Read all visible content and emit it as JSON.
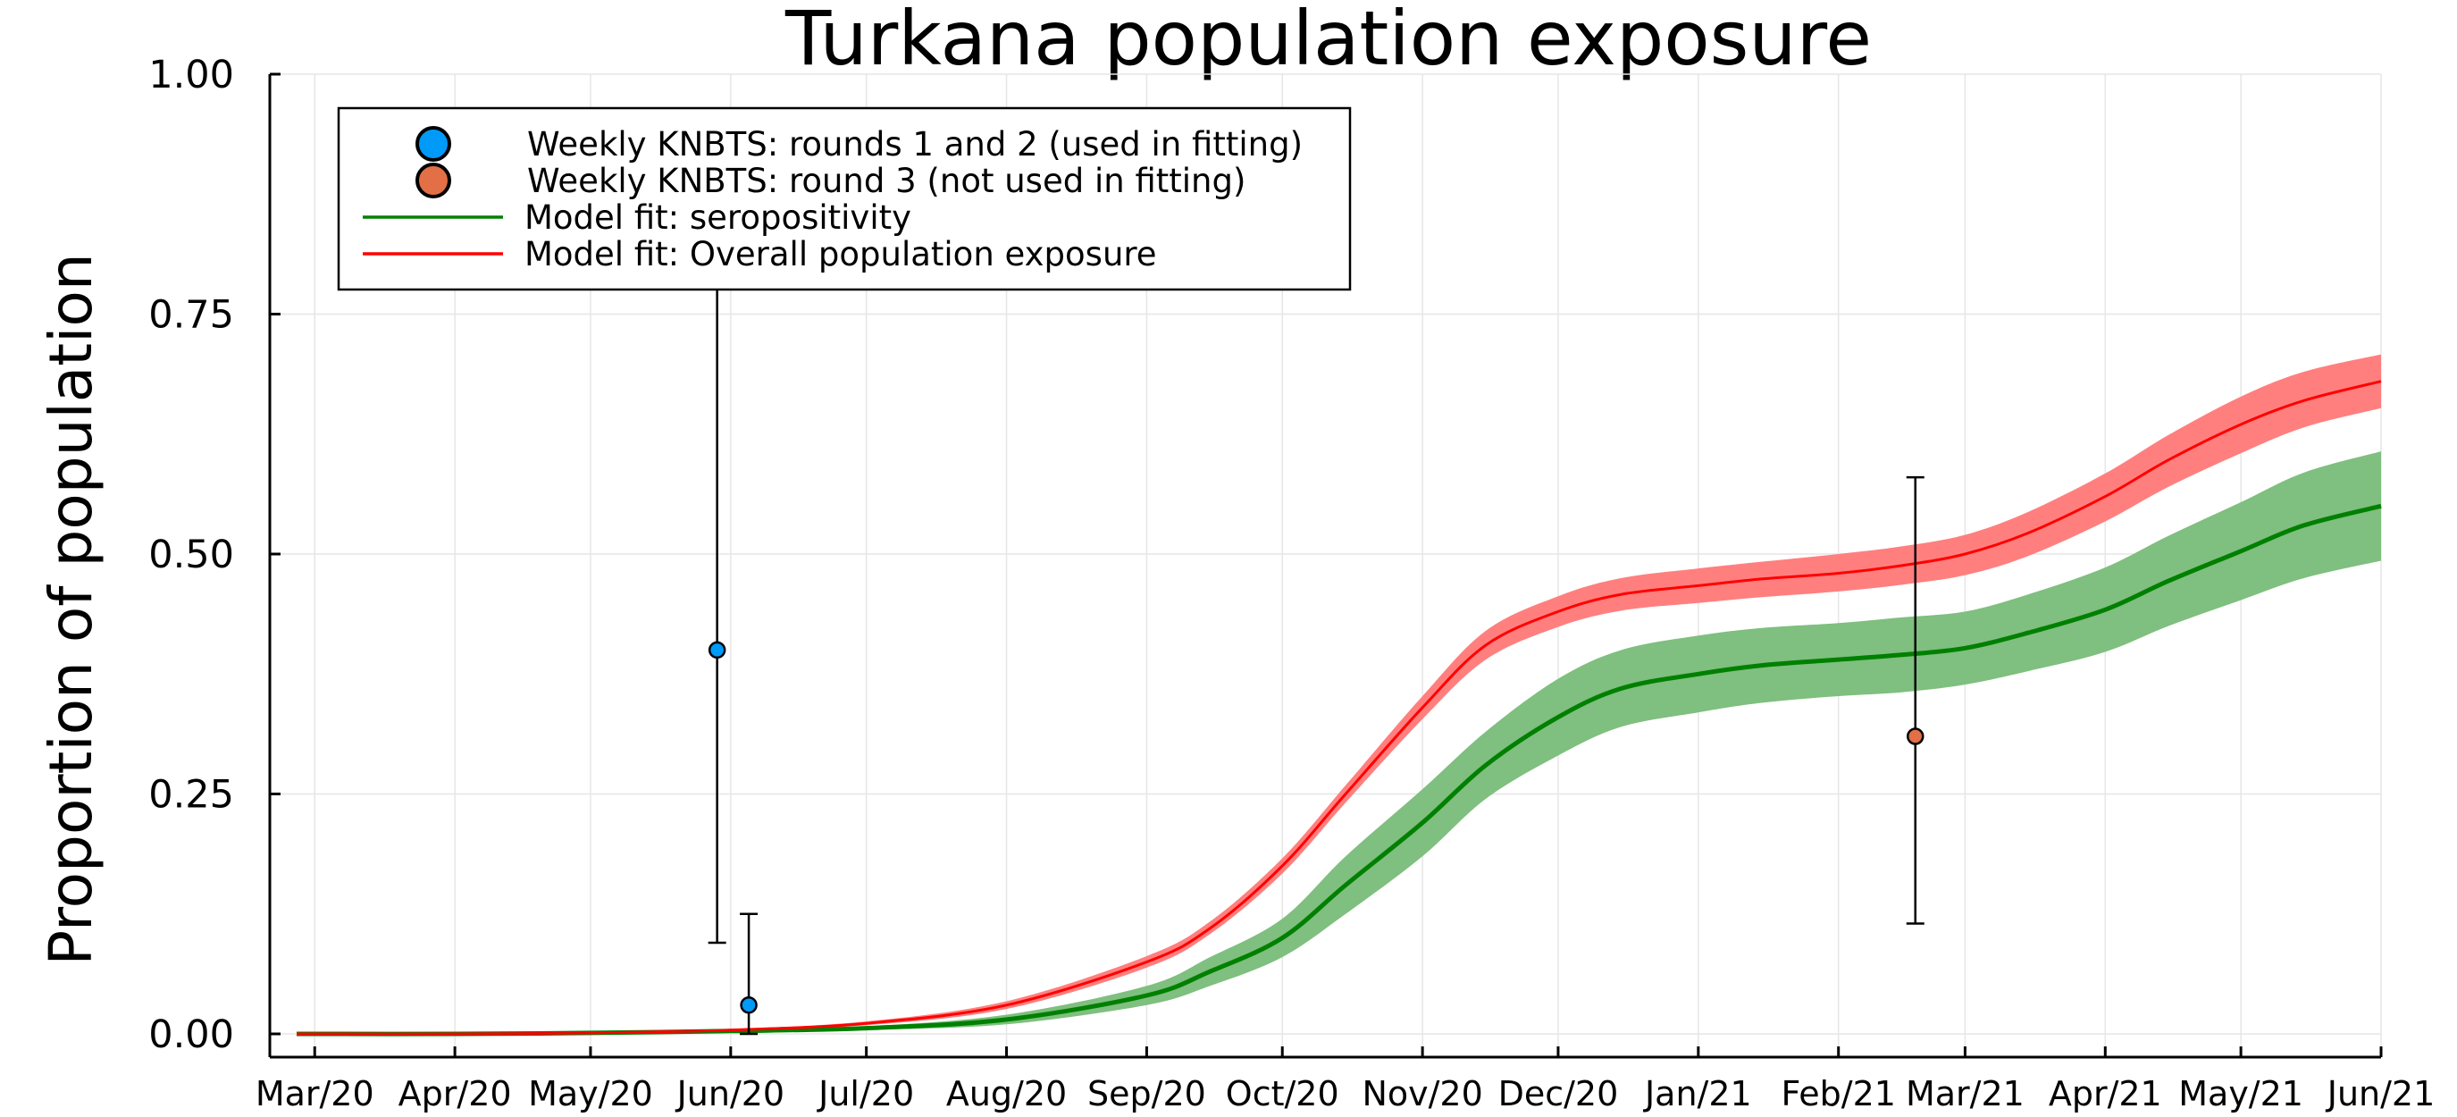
{
  "chart_data": {
    "type": "line",
    "title": "Turkana population exposure",
    "xlabel": "",
    "ylabel": "Proportion of population",
    "x_ticks": [
      "Mar/20",
      "Apr/20",
      "May/20",
      "Jun/20",
      "Jul/20",
      "Aug/20",
      "Sep/20",
      "Oct/20",
      "Nov/20",
      "Dec/20",
      "Jan/21",
      "Feb/21",
      "Mar/21",
      "Apr/21",
      "May/21",
      "Jun/21"
    ],
    "y_ticks": [
      "0.00",
      "0.25",
      "0.50",
      "0.75",
      "1.00"
    ],
    "xlim": [
      "2020-02-26",
      "2021-06-01"
    ],
    "ylim": [
      0,
      1
    ],
    "grid": true,
    "legend_position": "top-left",
    "colors": {
      "rounds_1_2": "#009af9",
      "round_3": "#e26f46",
      "seropositivity": "#008000",
      "seropositivity_band": "#7fbf7f",
      "overall": "#ff0000",
      "overall_band": "#ff7f7f"
    },
    "legend": [
      {
        "label": "Weekly KNBTS: rounds 1 and 2 (used in fitting)",
        "kind": "marker",
        "color_key": "rounds_1_2"
      },
      {
        "label": "Weekly KNBTS: round 3 (not used in fitting)",
        "kind": "marker",
        "color_key": "round_3"
      },
      {
        "label": "Model fit: seropositivity",
        "kind": "line",
        "color_key": "seropositivity"
      },
      {
        "label": "Model fit: Overall population exposure",
        "kind": "line",
        "color_key": "overall"
      }
    ],
    "points": [
      {
        "series": "rounds_1_2",
        "x": "2020-05-29",
        "y": 0.4,
        "lower": 0.095,
        "upper": 0.78
      },
      {
        "series": "rounds_1_2",
        "x": "2020-06-05",
        "y": 0.03,
        "lower": 0.0,
        "upper": 0.125
      },
      {
        "series": "round_3",
        "x": "2021-02-18",
        "y": 0.31,
        "lower": 0.115,
        "upper": 0.58
      }
    ],
    "series": [
      {
        "key": "overall",
        "x": [
          "2020-02-26",
          "2020-04-01",
          "2020-05-01",
          "2020-06-01",
          "2020-07-01",
          "2020-08-01",
          "2020-09-01",
          "2020-09-15",
          "2020-10-01",
          "2020-10-15",
          "2020-11-01",
          "2020-11-15",
          "2020-12-01",
          "2020-12-15",
          "2021-01-01",
          "2021-01-15",
          "2021-02-01",
          "2021-02-15",
          "2021-03-01",
          "2021-03-15",
          "2021-04-01",
          "2021-04-15",
          "2021-05-01",
          "2021-05-15",
          "2021-06-01"
        ],
        "y": [
          0.0,
          0.0,
          0.001,
          0.004,
          0.011,
          0.03,
          0.075,
          0.11,
          0.175,
          0.25,
          0.34,
          0.405,
          0.44,
          0.458,
          0.467,
          0.474,
          0.48,
          0.488,
          0.5,
          0.522,
          0.56,
          0.598,
          0.635,
          0.66,
          0.68
        ],
        "lower": [
          0.0,
          0.0,
          0.001,
          0.003,
          0.009,
          0.026,
          0.069,
          0.104,
          0.167,
          0.241,
          0.328,
          0.39,
          0.424,
          0.441,
          0.449,
          0.455,
          0.461,
          0.468,
          0.478,
          0.498,
          0.534,
          0.57,
          0.605,
          0.632,
          0.652
        ],
        "upper": [
          0.0,
          0.0,
          0.001,
          0.005,
          0.013,
          0.034,
          0.081,
          0.117,
          0.183,
          0.259,
          0.352,
          0.42,
          0.456,
          0.475,
          0.485,
          0.492,
          0.5,
          0.508,
          0.52,
          0.544,
          0.584,
          0.624,
          0.664,
          0.69,
          0.708
        ]
      },
      {
        "key": "seropositivity",
        "x": [
          "2020-02-26",
          "2020-04-01",
          "2020-05-01",
          "2020-06-01",
          "2020-07-01",
          "2020-08-01",
          "2020-09-01",
          "2020-09-15",
          "2020-10-01",
          "2020-10-15",
          "2020-11-01",
          "2020-11-15",
          "2020-12-01",
          "2020-12-15",
          "2021-01-01",
          "2021-01-15",
          "2021-02-01",
          "2021-02-15",
          "2021-03-01",
          "2021-03-15",
          "2021-04-01",
          "2021-04-15",
          "2021-05-01",
          "2021-05-15",
          "2021-06-01"
        ],
        "y": [
          0.0,
          0.0,
          0.001,
          0.003,
          0.006,
          0.015,
          0.04,
          0.065,
          0.1,
          0.155,
          0.22,
          0.28,
          0.33,
          0.36,
          0.375,
          0.384,
          0.39,
          0.395,
          0.402,
          0.418,
          0.442,
          0.472,
          0.503,
          0.53,
          0.55
        ],
        "lower": [
          0.0,
          0.0,
          0.0,
          0.002,
          0.004,
          0.01,
          0.03,
          0.05,
          0.08,
          0.125,
          0.185,
          0.245,
          0.29,
          0.32,
          0.335,
          0.345,
          0.352,
          0.356,
          0.364,
          0.378,
          0.398,
          0.425,
          0.452,
          0.475,
          0.493
        ],
        "upper": [
          0.0,
          0.0,
          0.002,
          0.004,
          0.008,
          0.02,
          0.05,
          0.08,
          0.12,
          0.185,
          0.255,
          0.315,
          0.37,
          0.4,
          0.415,
          0.423,
          0.428,
          0.434,
          0.44,
          0.458,
          0.486,
          0.519,
          0.554,
          0.585,
          0.607
        ]
      }
    ]
  }
}
